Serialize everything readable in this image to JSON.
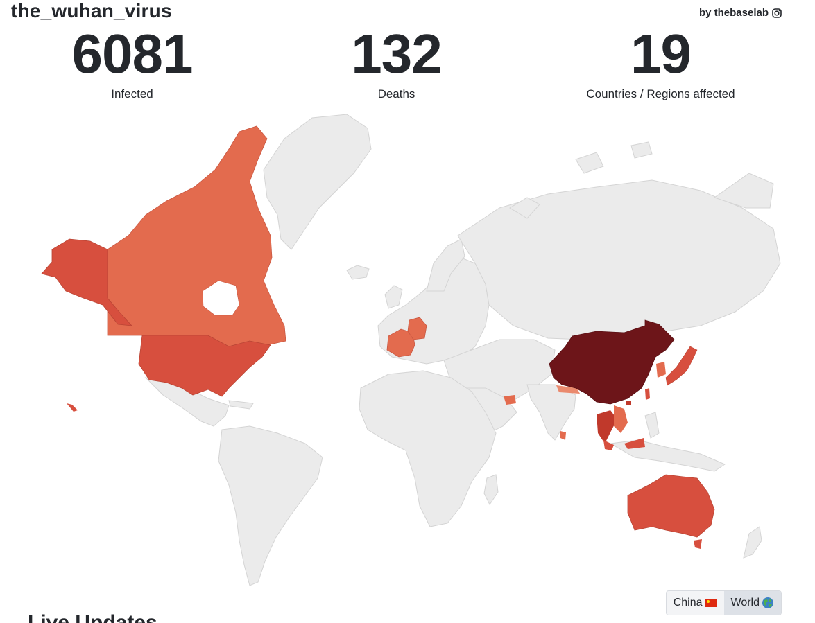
{
  "header": {
    "title": "the_wuhan_virus",
    "byline": "by thebaselab",
    "byline_icon": "instagram-icon"
  },
  "stats": [
    {
      "value": "6081",
      "label": "Infected"
    },
    {
      "value": "132",
      "label": "Deaths"
    },
    {
      "value": "19",
      "label": "Countries / Regions affected"
    }
  ],
  "map": {
    "type": "choropleth",
    "no_data_color": "#ebebeb",
    "highlighted": [
      {
        "region": "Canada",
        "color": "#e36b4e"
      },
      {
        "region": "United States",
        "color": "#d74f3e"
      },
      {
        "region": "Alaska (United States)",
        "color": "#d74f3e"
      },
      {
        "region": "France",
        "color": "#e36b4e"
      },
      {
        "region": "Germany",
        "color": "#e36b4e"
      },
      {
        "region": "United Arab Emirates",
        "color": "#e36b4e"
      },
      {
        "region": "Nepal",
        "color": "#ea8a6e"
      },
      {
        "region": "Sri Lanka",
        "color": "#e36b4e"
      },
      {
        "region": "China",
        "color": "#6d1519"
      },
      {
        "region": "Hong Kong",
        "color": "#c0392b"
      },
      {
        "region": "Macau",
        "color": "#c0392b"
      },
      {
        "region": "Taiwan",
        "color": "#d74f3e"
      },
      {
        "region": "South Korea",
        "color": "#e36b4e"
      },
      {
        "region": "Japan",
        "color": "#d74f3e"
      },
      {
        "region": "Thailand",
        "color": "#c0392b"
      },
      {
        "region": "Cambodia",
        "color": "#e36b4e"
      },
      {
        "region": "Vietnam",
        "color": "#e36b4e"
      },
      {
        "region": "Malaysia",
        "color": "#d74f3e"
      },
      {
        "region": "Singapore",
        "color": "#d74f3e"
      },
      {
        "region": "Australia",
        "color": "#d74f3e"
      }
    ]
  },
  "toggle": {
    "options": [
      {
        "label": "China",
        "icon": "china-flag-icon",
        "active": false
      },
      {
        "label": "World",
        "icon": "globe-icon",
        "active": true
      }
    ]
  },
  "section_peek": "Live Updates"
}
